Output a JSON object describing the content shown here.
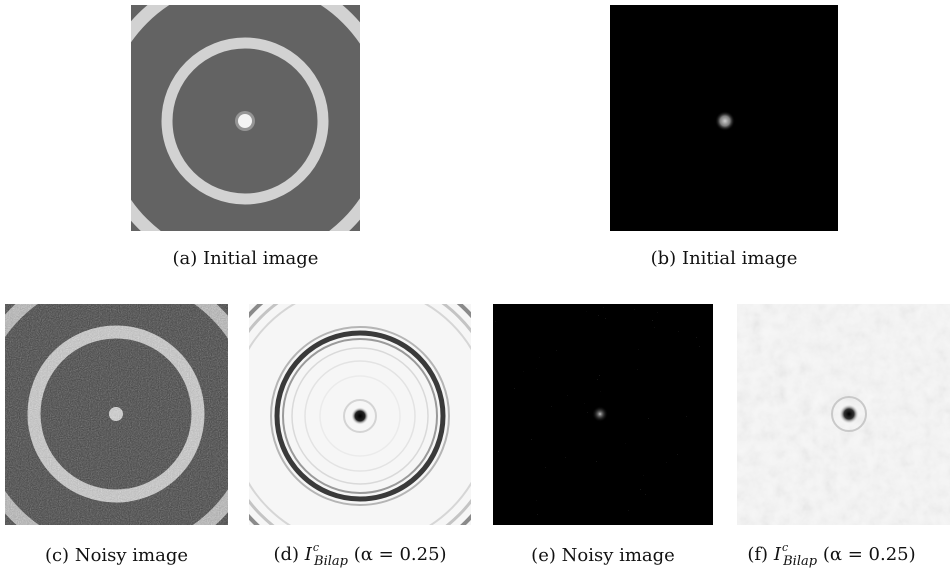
{
  "figure": {
    "panels": [
      {
        "id": "a",
        "label": "(a)",
        "caption": "Initial image",
        "kind": "ring-target",
        "background": "#636363"
      },
      {
        "id": "b",
        "label": "(b)",
        "caption": "Initial image",
        "kind": "point-source",
        "background": "#000000"
      },
      {
        "id": "c",
        "label": "(c)",
        "caption": "Noisy image",
        "kind": "noisy-ring"
      },
      {
        "id": "d",
        "label": "(d)",
        "symbol": "I",
        "superscript": "c",
        "subscript": "Bilap",
        "alpha": "(α = 0.25)",
        "kind": "restored-ring"
      },
      {
        "id": "e",
        "label": "(e)",
        "caption": "Noisy image",
        "kind": "noisy-point"
      },
      {
        "id": "f",
        "label": "(f)",
        "symbol": "I",
        "superscript": "c",
        "subscript": "Bilap",
        "alpha": "(α = 0.25)",
        "kind": "restored-point"
      }
    ]
  }
}
